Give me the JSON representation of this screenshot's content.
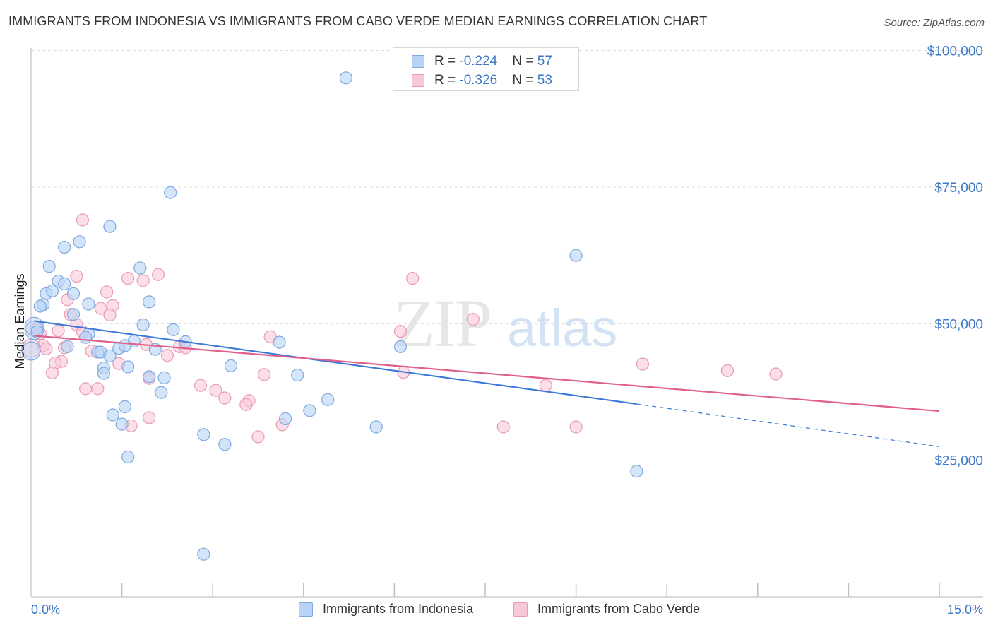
{
  "title": "IMMIGRANTS FROM INDONESIA VS IMMIGRANTS FROM CABO VERDE MEDIAN EARNINGS CORRELATION CHART",
  "source": "Source: ZipAtlas.com",
  "watermark": {
    "zip": "ZIP",
    "atlas": "atlas"
  },
  "legend": {
    "rows": [
      {
        "r_label": "R = ",
        "r_value": "-0.224",
        "n_label": "N = ",
        "n_value": "57"
      },
      {
        "r_label": "R = ",
        "r_value": "-0.326",
        "n_label": "N = ",
        "n_value": "53"
      }
    ]
  },
  "bottom_legend": [
    {
      "label": "Immigrants from Indonesia"
    },
    {
      "label": "Immigrants from Cabo Verde"
    }
  ],
  "colors": {
    "indonesia_fill": "#b8d3f5",
    "indonesia_stroke": "#7fa9e0",
    "indonesia_line": "#3b78d8",
    "caboverde_fill": "#f9c8d8",
    "caboverde_stroke": "#e99ab5",
    "caboverde_line": "#e0608a",
    "tick_text": "#3b78c9",
    "grid": "#dcdcdc"
  },
  "chart_data": {
    "type": "scatter",
    "title": "IMMIGRANTS FROM INDONESIA VS IMMIGRANTS FROM CABO VERDE MEDIAN EARNINGS CORRELATION CHART",
    "xlabel": "",
    "ylabel": "Median Earnings",
    "xlim": [
      0,
      15
    ],
    "ylim": [
      0,
      105000
    ],
    "x_tick_labels": [
      "0.0%",
      "15.0%"
    ],
    "y_ticks": [
      25000,
      50000,
      75000,
      100000
    ],
    "y_tick_labels": [
      "$25,000",
      "$50,000",
      "$75,000",
      "$100,000"
    ],
    "grid": true,
    "legend_position": "top-center",
    "series": [
      {
        "name": "Immigrants from Indonesia",
        "R": -0.224,
        "N": 57,
        "trend": {
          "x_start": 0.05,
          "y_start": 50500,
          "x_solid_end": 10.0,
          "y_solid_end": 35300,
          "x_end": 15.0,
          "y_end": 27500
        },
        "points": [
          [
            5.2,
            95000
          ],
          [
            2.3,
            74000
          ],
          [
            1.3,
            67800
          ],
          [
            9.0,
            62500
          ],
          [
            0.8,
            65000
          ],
          [
            0.55,
            64000
          ],
          [
            0.3,
            60500
          ],
          [
            1.8,
            60200
          ],
          [
            0.45,
            57800
          ],
          [
            0.55,
            57300
          ],
          [
            0.25,
            55500
          ],
          [
            0.35,
            56000
          ],
          [
            0.7,
            55500
          ],
          [
            1.95,
            54000
          ],
          [
            0.2,
            53500
          ],
          [
            0.15,
            53200
          ],
          [
            0.95,
            53600
          ],
          [
            0.7,
            51700
          ],
          [
            1.85,
            49800
          ],
          [
            2.35,
            48900
          ],
          [
            0.05,
            48800
          ],
          [
            0.95,
            48100
          ],
          [
            0.9,
            47500
          ],
          [
            2.55,
            46700
          ],
          [
            4.1,
            46600
          ],
          [
            6.1,
            45800
          ],
          [
            1.7,
            46800
          ],
          [
            0.6,
            45800
          ],
          [
            1.45,
            45500
          ],
          [
            1.55,
            46000
          ],
          [
            2.05,
            45300
          ],
          [
            1.1,
            44800
          ],
          [
            1.15,
            44800
          ],
          [
            1.3,
            44100
          ],
          [
            0.0,
            45000
          ],
          [
            1.6,
            42100
          ],
          [
            3.3,
            42300
          ],
          [
            1.2,
            41900
          ],
          [
            1.2,
            40900
          ],
          [
            4.4,
            40600
          ],
          [
            1.95,
            40300
          ],
          [
            2.2,
            40100
          ],
          [
            2.15,
            37400
          ],
          [
            4.9,
            36100
          ],
          [
            1.55,
            34800
          ],
          [
            4.6,
            34100
          ],
          [
            1.35,
            33300
          ],
          [
            4.2,
            32600
          ],
          [
            1.5,
            31600
          ],
          [
            5.7,
            31100
          ],
          [
            2.85,
            29700
          ],
          [
            3.2,
            27900
          ],
          [
            1.6,
            25600
          ],
          [
            10.0,
            23000
          ],
          [
            2.85,
            7800
          ],
          [
            0.05,
            49500
          ],
          [
            0.1,
            48500
          ]
        ]
      },
      {
        "name": "Immigrants from Cabo Verde",
        "R": -0.326,
        "N": 53,
        "trend": {
          "x_start": 0.05,
          "y_start": 47800,
          "x_end": 15.0,
          "y_end": 34000
        },
        "points": [
          [
            0.85,
            69000
          ],
          [
            6.3,
            58300
          ],
          [
            2.1,
            59000
          ],
          [
            0.75,
            58700
          ],
          [
            1.6,
            58300
          ],
          [
            1.85,
            57900
          ],
          [
            1.25,
            55800
          ],
          [
            0.6,
            54400
          ],
          [
            1.35,
            53300
          ],
          [
            1.15,
            52800
          ],
          [
            1.3,
            51600
          ],
          [
            0.65,
            51700
          ],
          [
            7.3,
            50800
          ],
          [
            0.75,
            49800
          ],
          [
            0.45,
            48700
          ],
          [
            0.85,
            48500
          ],
          [
            6.1,
            48600
          ],
          [
            3.95,
            47600
          ],
          [
            1.9,
            46200
          ],
          [
            0.2,
            46000
          ],
          [
            2.45,
            45800
          ],
          [
            2.55,
            45600
          ],
          [
            0.25,
            45400
          ],
          [
            1.0,
            45000
          ],
          [
            2.25,
            44200
          ],
          [
            1.45,
            42700
          ],
          [
            0.5,
            43100
          ],
          [
            0.4,
            42800
          ],
          [
            10.1,
            42600
          ],
          [
            11.5,
            41400
          ],
          [
            12.3,
            40800
          ],
          [
            6.15,
            41100
          ],
          [
            0.35,
            41000
          ],
          [
            3.85,
            40700
          ],
          [
            1.95,
            40000
          ],
          [
            2.8,
            38700
          ],
          [
            8.5,
            38700
          ],
          [
            0.9,
            38100
          ],
          [
            1.1,
            38100
          ],
          [
            3.05,
            37800
          ],
          [
            3.2,
            36400
          ],
          [
            3.6,
            35900
          ],
          [
            3.55,
            35200
          ],
          [
            1.65,
            31300
          ],
          [
            1.95,
            32800
          ],
          [
            4.15,
            31500
          ],
          [
            7.8,
            31100
          ],
          [
            9.0,
            31100
          ],
          [
            3.75,
            29300
          ],
          [
            0.1,
            49000
          ],
          [
            0.15,
            48200
          ],
          [
            0.0,
            45500
          ],
          [
            0.55,
            45600
          ]
        ]
      }
    ]
  }
}
